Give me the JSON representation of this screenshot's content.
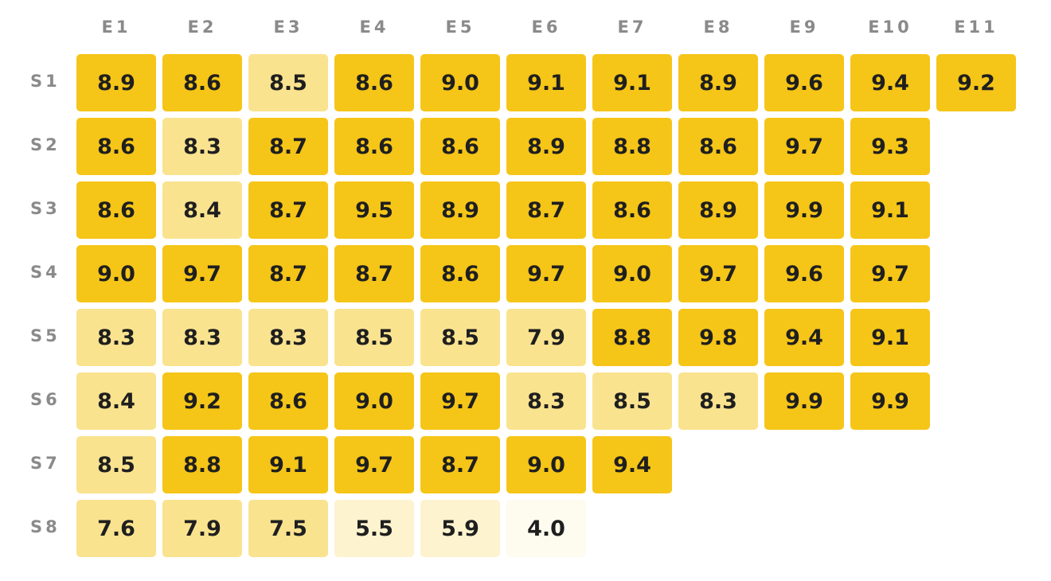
{
  "chart_data": {
    "type": "heatmap",
    "title": "",
    "xlabel": "",
    "ylabel": "",
    "columns": [
      "E1",
      "E2",
      "E3",
      "E4",
      "E5",
      "E6",
      "E7",
      "E8",
      "E9",
      "E10",
      "E11"
    ],
    "rows": [
      "S1",
      "S2",
      "S3",
      "S4",
      "S5",
      "S6",
      "S7",
      "S8"
    ],
    "values": [
      [
        "8.9",
        "8.6",
        "8.5",
        "8.6",
        "9.0",
        "9.1",
        "9.1",
        "8.9",
        "9.6",
        "9.4",
        "9.2"
      ],
      [
        "8.6",
        "8.3",
        "8.7",
        "8.6",
        "8.6",
        "8.9",
        "8.8",
        "8.6",
        "9.7",
        "9.3"
      ],
      [
        "8.6",
        "8.4",
        "8.7",
        "9.5",
        "8.9",
        "8.7",
        "8.6",
        "8.9",
        "9.9",
        "9.1"
      ],
      [
        "9.0",
        "9.7",
        "8.7",
        "8.7",
        "8.6",
        "9.7",
        "9.0",
        "9.7",
        "9.6",
        "9.7"
      ],
      [
        "8.3",
        "8.3",
        "8.3",
        "8.5",
        "8.5",
        "7.9",
        "8.8",
        "9.8",
        "9.4",
        "9.1"
      ],
      [
        "8.4",
        "9.2",
        "8.6",
        "9.0",
        "9.7",
        "8.3",
        "8.5",
        "8.3",
        "9.9",
        "9.9"
      ],
      [
        "8.5",
        "8.8",
        "9.1",
        "9.7",
        "8.7",
        "9.0",
        "9.4"
      ],
      [
        "7.6",
        "7.9",
        "7.5",
        "5.5",
        "5.9",
        "4.0"
      ]
    ],
    "colors": {
      "high": "#f5c518",
      "mid": "#fae38f",
      "low": "#fdf3cf",
      "lowest": "#fefbef"
    }
  }
}
